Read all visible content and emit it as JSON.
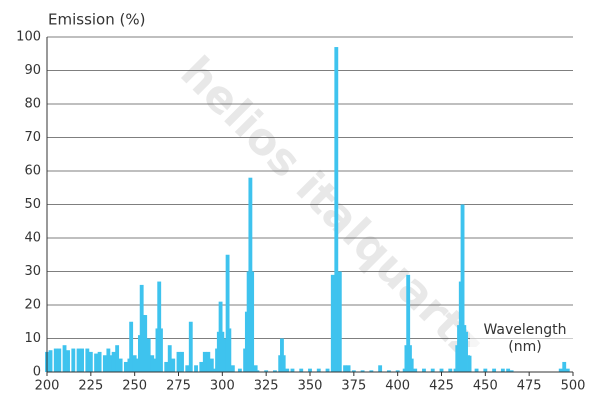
{
  "chart_data": {
    "type": "bar",
    "y_label": "Emission (%)",
    "x_label": "Wavelength (nm)",
    "watermark": "helios italquartz",
    "x": [
      200,
      202,
      205,
      207,
      210,
      212,
      215,
      218,
      220,
      223,
      225,
      228,
      230,
      233,
      235,
      237,
      238,
      240,
      242,
      245,
      247,
      248,
      250,
      252,
      253,
      254,
      255,
      256,
      258,
      260,
      262,
      263,
      264,
      265,
      268,
      270,
      272,
      275,
      277,
      280,
      282,
      285,
      288,
      290,
      292,
      294,
      296,
      297,
      298,
      299,
      300,
      302,
      303,
      304,
      306,
      310,
      313,
      314,
      315,
      316,
      317,
      319,
      320,
      325,
      330,
      333,
      334,
      335,
      337,
      340,
      345,
      350,
      355,
      360,
      363,
      365,
      366,
      367,
      370,
      372,
      375,
      380,
      385,
      390,
      395,
      400,
      404,
      405,
      406,
      407,
      408,
      410,
      415,
      420,
      425,
      430,
      433,
      434,
      435,
      436,
      437,
      438,
      439,
      441,
      445,
      450,
      455,
      460,
      463,
      465,
      493,
      495,
      497
    ],
    "values": [
      6,
      6.5,
      7,
      7,
      8,
      6.5,
      7,
      7,
      7,
      7,
      6,
      5.5,
      6,
      5,
      7,
      5,
      6,
      8,
      4,
      3,
      4,
      15,
      5,
      4,
      11,
      26,
      17,
      17,
      10,
      5,
      4,
      13,
      27,
      13,
      3,
      8,
      4,
      6,
      6,
      2,
      15,
      2,
      3,
      6,
      6,
      4,
      1,
      7,
      12,
      21,
      12,
      10,
      35,
      13,
      2,
      1,
      7,
      18,
      30,
      58,
      30,
      2,
      0.5,
      0.5,
      0.5,
      5,
      10,
      5,
      1,
      1,
      1,
      1,
      1,
      1,
      29,
      97,
      30,
      30,
      2,
      2,
      0.5,
      0.5,
      0.5,
      2,
      0.5,
      0.5,
      1,
      8,
      29,
      8,
      4,
      1,
      1,
      1,
      1,
      1,
      1,
      8,
      14,
      27,
      50,
      14,
      12,
      5,
      1,
      1,
      1,
      1,
      1,
      0.5,
      1,
      3,
      1
    ],
    "color": "#3ec3ee",
    "xlim": [
      200,
      500
    ],
    "xticks": [
      200,
      225,
      250,
      275,
      300,
      325,
      350,
      375,
      400,
      425,
      450,
      475,
      500
    ],
    "ylim": [
      0,
      100
    ],
    "yticks": [
      0,
      10,
      20,
      30,
      40,
      50,
      60,
      70,
      80,
      90,
      100
    ],
    "grid": true
  }
}
